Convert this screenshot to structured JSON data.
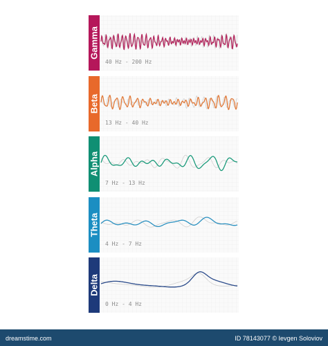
{
  "waves": [
    {
      "name": "Gamma",
      "range": "40 Hz - 200 Hz"
    },
    {
      "name": "Beta",
      "range": "13 Hz - 40 Hz"
    },
    {
      "name": "Alpha",
      "range": "7 Hz - 13 Hz"
    },
    {
      "name": "Theta",
      "range": "4 Hz - 7 Hz"
    },
    {
      "name": "Delta",
      "range": "0 Hz - 4 Hz"
    }
  ],
  "footer": {
    "site": "dreamstime.com",
    "credit": "ID 78143077 © Ievgen Soloviov"
  }
}
